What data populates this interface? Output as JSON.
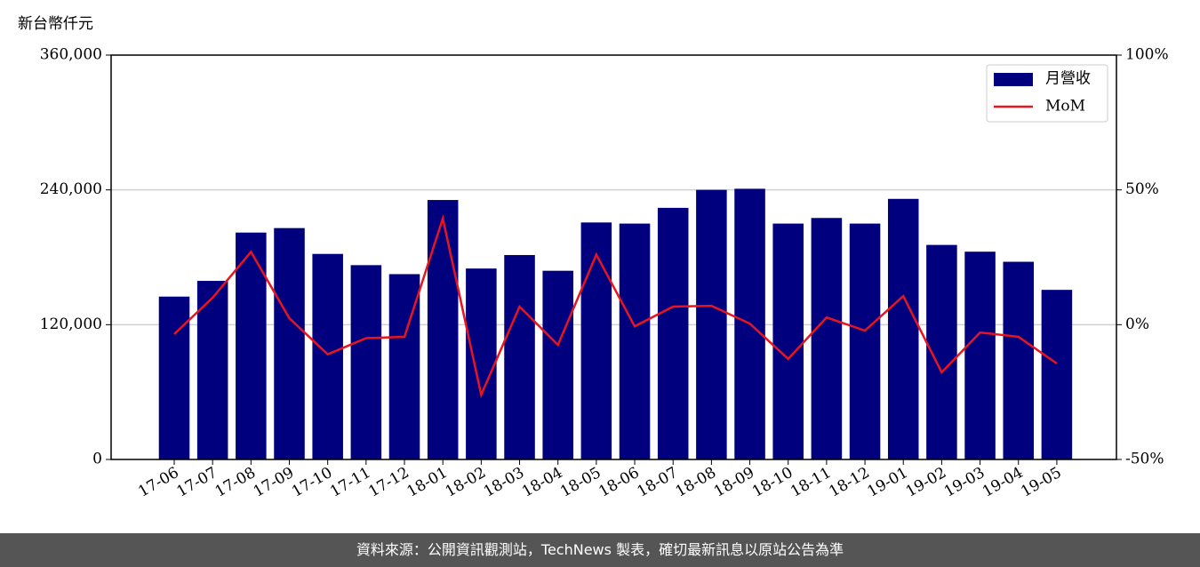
{
  "chart_data": {
    "type": "bar",
    "y_label": "新台幣仟元",
    "categories": [
      "17-06",
      "17-07",
      "17-08",
      "17-09",
      "17-10",
      "17-11",
      "17-12",
      "18-01",
      "18-02",
      "18-03",
      "18-04",
      "18-05",
      "18-06",
      "18-07",
      "18-08",
      "18-09",
      "18-10",
      "18-11",
      "18-12",
      "19-01",
      "19-02",
      "19-03",
      "19-04",
      "19-05"
    ],
    "series": [
      {
        "name": "月營收",
        "type": "bar",
        "color": "#00007f",
        "values": [
          145000,
          159000,
          202000,
          206000,
          183000,
          173000,
          165000,
          231000,
          170000,
          182000,
          168000,
          211000,
          210000,
          224000,
          240000,
          241000,
          210000,
          215000,
          210000,
          232000,
          191000,
          185000,
          176000,
          151000
        ]
      },
      {
        "name": "MoM",
        "type": "line",
        "axis": "y2",
        "color": "#e8141e",
        "values": [
          -3.5,
          10,
          27,
          2.4,
          -11,
          -5,
          -4.5,
          39.4,
          -26,
          6.7,
          -7.5,
          26,
          -0.6,
          6.7,
          7,
          0.4,
          -12.7,
          2.7,
          -2.2,
          10.6,
          -17.7,
          -2.9,
          -4.5,
          -14.4
        ]
      }
    ],
    "ylim": [
      0,
      360000
    ],
    "yticks": [
      0,
      {
        "value": 120000,
        "label": "120,000"
      },
      {
        "value": 240000,
        "label": "240,000"
      },
      {
        "value": 360000,
        "label": "360,000"
      }
    ],
    "y2lim": [
      -50,
      100
    ],
    "y2ticks": [
      {
        "value": -50,
        "label": "-50%"
      },
      {
        "value": 0,
        "label": "0%"
      },
      {
        "value": 50,
        "label": "50%"
      },
      {
        "value": 100,
        "label": "100%"
      }
    ],
    "grid": true,
    "legend": "upper right"
  },
  "footer": "資料來源：公開資訊觀測站，TechNews 製表，確切最新訊息以原站公告為準"
}
